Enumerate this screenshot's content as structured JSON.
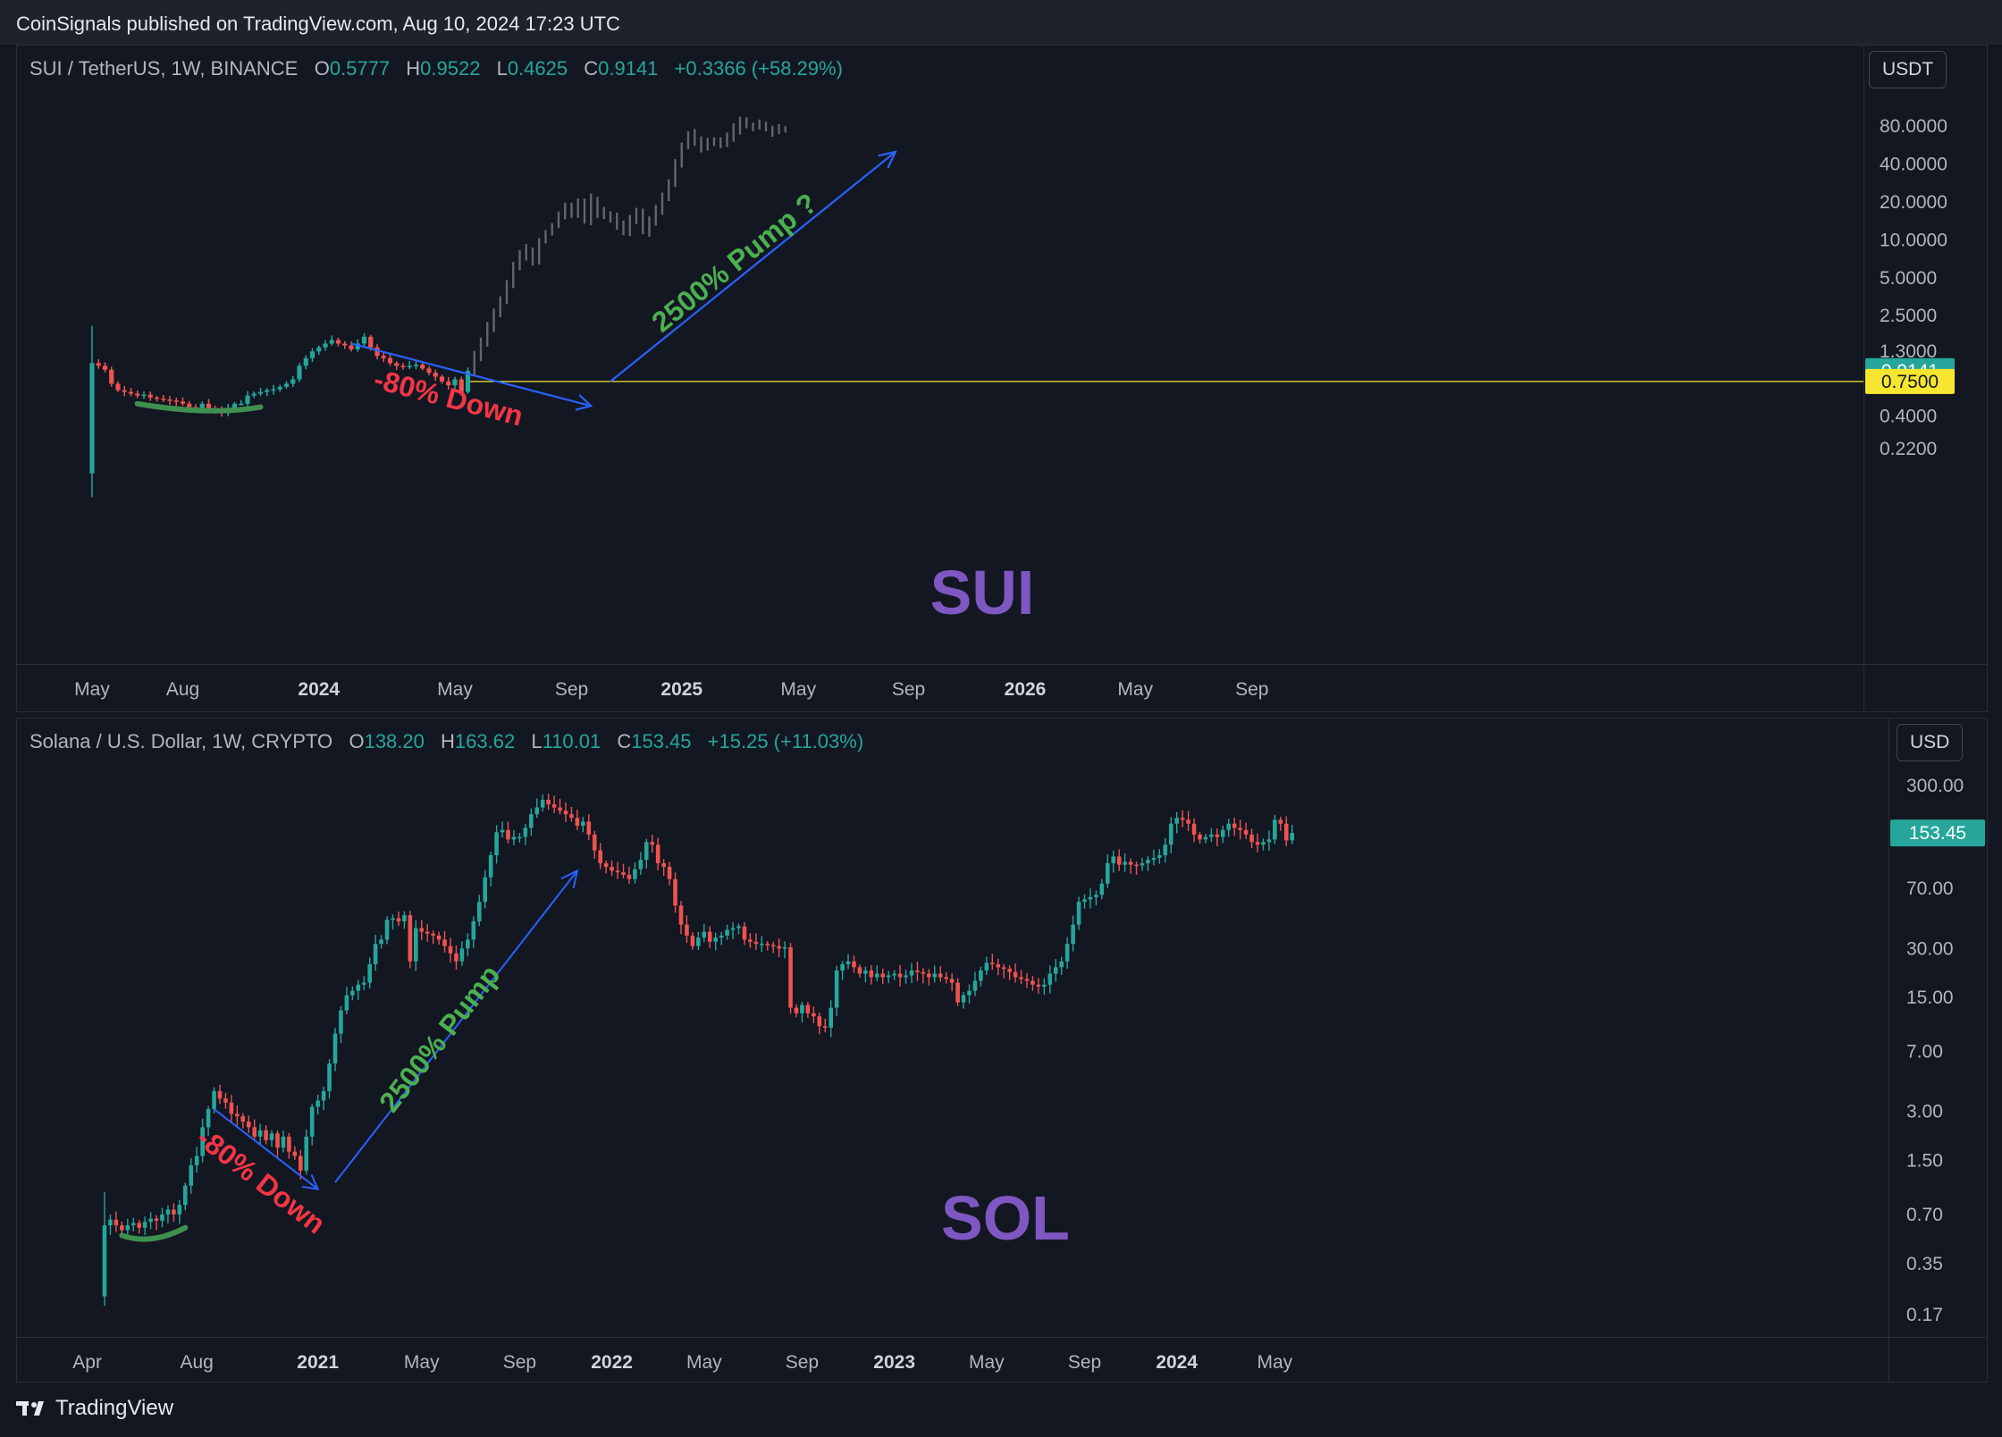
{
  "header": {
    "text": "CoinSignals published on TradingView.com, Aug 10, 2024 17:23 UTC"
  },
  "footer": {
    "brand": "TradingView",
    "icon": "tradingview-logo-icon"
  },
  "colors": {
    "background": "#131722",
    "up": "#26a69a",
    "down": "#ef5350",
    "projection": "#7a7f8a",
    "arrow": "#2962ff",
    "pump_text": "#4caf50",
    "down_text": "#f23645",
    "ticker_label": "#7e57c2",
    "level_line": "#f7e62f"
  },
  "chart_data": [
    {
      "type": "candlestick",
      "title": "SUI / TetherUS, 1W, BINANCE",
      "ohlc": {
        "O": "0.5777",
        "H": "0.9522",
        "L": "0.4625",
        "C": "0.9141",
        "change": "+0.3366 (+58.29%)"
      },
      "currency": "USDT",
      "scale": "log",
      "y_ticks": [
        "80.0000",
        "40.0000",
        "20.0000",
        "10.0000",
        "5.0000",
        "2.5000",
        "1.3000",
        "0.4000",
        "0.2200"
      ],
      "y_tick_values": [
        80,
        40,
        20,
        10,
        5,
        2.5,
        1.3,
        0.4,
        0.22
      ],
      "x_ticks": [
        "May",
        "Aug",
        "2024",
        "May",
        "Sep",
        "2025",
        "May",
        "Sep",
        "2026",
        "May",
        "Sep"
      ],
      "price_labels": [
        {
          "text": "0.9141",
          "value": 0.9141,
          "color": "#26a69a",
          "text_color": "#ffffff"
        },
        {
          "text": "0.7500",
          "value": 0.75,
          "color": "#f7e62f",
          "text_color": "#131722"
        }
      ],
      "horizontal_level": 0.75,
      "annotations": {
        "down": "-80% Down",
        "pump": "2500% Pump ?",
        "ticker": "SUI",
        "pump_target_value": 50,
        "pump_start_value": 0.75
      },
      "series": {
        "actual": {
          "start": "2023-05-01",
          "close": [
            1.05,
            1.0,
            0.93,
            0.72,
            0.64,
            0.62,
            0.6,
            0.58,
            0.59,
            0.56,
            0.55,
            0.54,
            0.53,
            0.52,
            0.5,
            0.47,
            0.46,
            0.5,
            0.45,
            0.44,
            0.42,
            0.46,
            0.5,
            0.5,
            0.58,
            0.6,
            0.62,
            0.64,
            0.65,
            0.68,
            0.72,
            0.78,
            1.0,
            1.15,
            1.3,
            1.4,
            1.5,
            1.6,
            1.5,
            1.45,
            1.35,
            1.5,
            1.7,
            1.4,
            1.2,
            1.15,
            1.05,
            1.0,
            0.98,
            1.0,
            1.02,
            0.95,
            0.88,
            0.82,
            0.75,
            0.7,
            0.78,
            0.62,
            0.91
          ]
        },
        "projection": {
          "close": [
            1.2,
            1.55,
            2.0,
            2.6,
            3.4,
            4.5,
            6.0,
            7.6,
            8.3,
            6.9,
            9.8,
            11.4,
            13.0,
            15.8,
            18.2,
            16.5,
            19.8,
            14.3,
            20.9,
            16.5,
            15.3,
            14.7,
            12.9,
            11.4,
            14.2,
            16.5,
            11.7,
            14.2,
            17.5,
            21.5,
            28.5,
            40.1,
            55.2,
            68.7,
            61.1,
            53.5,
            58.5,
            61.3,
            57.2,
            65.4,
            75.3,
            85.2,
            81.4,
            80.5,
            79.5,
            76.3,
            72.9,
            75.3,
            74.6
          ]
        }
      }
    },
    {
      "type": "candlestick",
      "title": "Solana / U.S. Dollar, 1W, CRYPTO",
      "ohlc": {
        "O": "138.20",
        "H": "163.62",
        "L": "110.01",
        "C": "153.45",
        "change": "+15.25 (+11.03%)"
      },
      "currency": "USD",
      "scale": "log",
      "y_ticks": [
        "300.00",
        "70.00",
        "30.00",
        "15.00",
        "7.00",
        "3.00",
        "1.50",
        "0.70",
        "0.35",
        "0.17"
      ],
      "y_tick_values": [
        300,
        70,
        30,
        15,
        7,
        3,
        1.5,
        0.7,
        0.35,
        0.17
      ],
      "x_ticks": [
        "Apr",
        "Aug",
        "2021",
        "May",
        "Sep",
        "2022",
        "May",
        "Sep",
        "2023",
        "May",
        "Sep",
        "2024",
        "May"
      ],
      "price_labels": [
        {
          "text": "153.45",
          "value": 153.45,
          "color": "#26a69a",
          "text_color": "#ffffff"
        }
      ],
      "annotations": {
        "down": "-80% Down",
        "pump": "2500% Pump",
        "ticker": "SOL"
      },
      "series": {
        "start": "2020-04-13",
        "close": [
          0.6,
          0.65,
          0.6,
          0.56,
          0.6,
          0.62,
          0.58,
          0.63,
          0.66,
          0.64,
          0.7,
          0.75,
          0.7,
          0.8,
          1.05,
          1.4,
          1.6,
          2.4,
          3.1,
          4.0,
          3.6,
          3.4,
          2.9,
          2.8,
          2.6,
          2.4,
          2.1,
          2.3,
          2.0,
          2.2,
          1.8,
          2.1,
          1.7,
          1.6,
          1.3,
          2.1,
          3.2,
          3.5,
          4.0,
          5.9,
          9.0,
          12.5,
          15.5,
          16.5,
          18.0,
          18.5,
          24.0,
          32.0,
          34.0,
          45.0,
          46.0,
          44.0,
          48.0,
          25.0,
          40.0,
          38.0,
          37.0,
          36.0,
          34.0,
          31.0,
          28.0,
          25.0,
          30.0,
          34.0,
          44.0,
          58.0,
          82.0,
          112.0,
          155.0,
          160.0,
          140.0,
          145.0,
          145.0,
          165.0,
          200.0,
          220.0,
          245.0,
          230.0,
          220.0,
          210.0,
          200.0,
          190.0,
          170.0,
          180.0,
          150.0,
          120.0,
          100.0,
          95.0,
          90.0,
          88.0,
          85.0,
          80.0,
          92.0,
          105.0,
          135.0,
          130.0,
          100.0,
          95.0,
          80.0,
          55.0,
          42.0,
          36.0,
          31.0,
          35.0,
          38.0,
          33.0,
          35.0,
          36.0,
          39.0,
          40.0,
          41.0,
          34.0,
          33.0,
          32.0,
          32.0,
          31.5,
          31.0,
          30.0,
          30.5,
          13.0,
          12.0,
          13.5,
          12.0,
          11.5,
          10.0,
          9.8,
          13.0,
          22.0,
          24.0,
          25.0,
          23.0,
          21.0,
          22.0,
          20.0,
          21.0,
          20.0,
          20.5,
          21.0,
          20.0,
          20.5,
          22.0,
          21.5,
          21.0,
          20.0,
          21.0,
          20.0,
          19.5,
          18.5,
          14.0,
          15.5,
          16.5,
          19.0,
          22.0,
          24.5,
          24.0,
          23.0,
          22.5,
          21.5,
          20.0,
          19.5,
          19.0,
          18.0,
          17.5,
          18.0,
          21.0,
          23.0,
          25.0,
          32.0,
          42.0,
          58.0,
          60.0,
          62.0,
          64.0,
          75.0,
          100.0,
          110.0,
          98.0,
          102.0,
          98.0,
          97.0,
          100.0,
          105.0,
          108.0,
          112.0,
          130.0,
          175.0,
          190.0,
          185.0,
          175.0,
          150.0,
          140.0,
          145.0,
          150.0,
          145.0,
          160.0,
          175.0,
          165.0,
          160.0,
          150.0,
          135.0,
          130.0,
          135.0,
          140.0,
          185.0,
          175.0,
          138.2,
          153.45
        ]
      }
    }
  ]
}
